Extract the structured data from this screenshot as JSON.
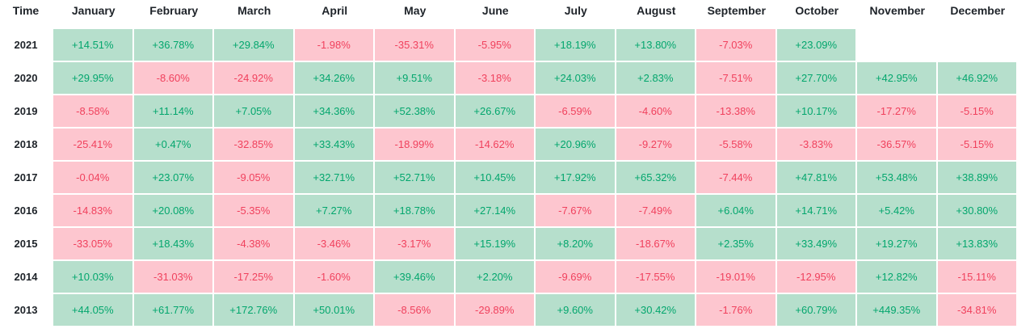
{
  "chart_data": {
    "type": "heatmap",
    "corner_label": "Time",
    "columns": [
      "January",
      "February",
      "March",
      "April",
      "May",
      "June",
      "July",
      "August",
      "September",
      "October",
      "November",
      "December"
    ],
    "rows": [
      {
        "year": "2021",
        "values": [
          "+14.51%",
          "+36.78%",
          "+29.84%",
          "-1.98%",
          "-35.31%",
          "-5.95%",
          "+18.19%",
          "+13.80%",
          "-7.03%",
          "+23.09%",
          "",
          ""
        ]
      },
      {
        "year": "2020",
        "values": [
          "+29.95%",
          "-8.60%",
          "-24.92%",
          "+34.26%",
          "+9.51%",
          "-3.18%",
          "+24.03%",
          "+2.83%",
          "-7.51%",
          "+27.70%",
          "+42.95%",
          "+46.92%"
        ]
      },
      {
        "year": "2019",
        "values": [
          "-8.58%",
          "+11.14%",
          "+7.05%",
          "+34.36%",
          "+52.38%",
          "+26.67%",
          "-6.59%",
          "-4.60%",
          "-13.38%",
          "+10.17%",
          "-17.27%",
          "-5.15%"
        ]
      },
      {
        "year": "2018",
        "values": [
          "-25.41%",
          "+0.47%",
          "-32.85%",
          "+33.43%",
          "-18.99%",
          "-14.62%",
          "+20.96%",
          "-9.27%",
          "-5.58%",
          "-3.83%",
          "-36.57%",
          "-5.15%"
        ]
      },
      {
        "year": "2017",
        "values": [
          "-0.04%",
          "+23.07%",
          "-9.05%",
          "+32.71%",
          "+52.71%",
          "+10.45%",
          "+17.92%",
          "+65.32%",
          "-7.44%",
          "+47.81%",
          "+53.48%",
          "+38.89%"
        ]
      },
      {
        "year": "2016",
        "values": [
          "-14.83%",
          "+20.08%",
          "-5.35%",
          "+7.27%",
          "+18.78%",
          "+27.14%",
          "-7.67%",
          "-7.49%",
          "+6.04%",
          "+14.71%",
          "+5.42%",
          "+30.80%"
        ]
      },
      {
        "year": "2015",
        "values": [
          "-33.05%",
          "+18.43%",
          "-4.38%",
          "-3.46%",
          "-3.17%",
          "+15.19%",
          "+8.20%",
          "-18.67%",
          "+2.35%",
          "+33.49%",
          "+19.27%",
          "+13.83%"
        ]
      },
      {
        "year": "2014",
        "values": [
          "+10.03%",
          "-31.03%",
          "-17.25%",
          "-1.60%",
          "+39.46%",
          "+2.20%",
          "-9.69%",
          "-17.55%",
          "-19.01%",
          "-12.95%",
          "+12.82%",
          "-15.11%"
        ]
      },
      {
        "year": "2013",
        "values": [
          "+44.05%",
          "+61.77%",
          "+172.76%",
          "+50.01%",
          "-8.56%",
          "-29.89%",
          "+9.60%",
          "+30.42%",
          "-1.76%",
          "+60.79%",
          "+449.35%",
          "-34.81%"
        ]
      }
    ]
  },
  "colors": {
    "positive_bg": "#b6dfcc",
    "positive_text": "#03a66d",
    "negative_bg": "#fdc6cf",
    "negative_text": "#f0415d",
    "header_text": "#1e2329",
    "cell_border": "#ffffff"
  }
}
